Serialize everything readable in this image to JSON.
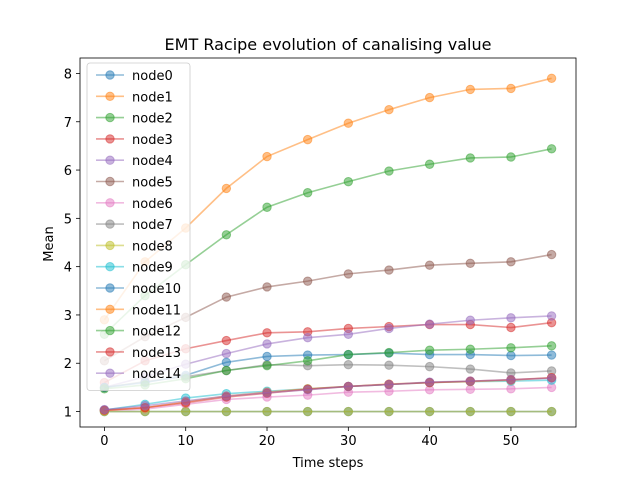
{
  "chart_data": {
    "type": "line",
    "title": "EMT Racipe evolution of canalising value",
    "xlabel": "Time steps",
    "ylabel": "Mean",
    "x": [
      0,
      5,
      10,
      15,
      20,
      25,
      30,
      35,
      40,
      45,
      50,
      55
    ],
    "xlim": [
      -3.0,
      58.0
    ],
    "ylim": [
      0.68,
      8.32
    ],
    "xticks": [
      0,
      10,
      20,
      30,
      40,
      50
    ],
    "yticks": [
      1,
      2,
      3,
      4,
      5,
      6,
      7,
      8
    ],
    "grid": false,
    "legend_position": "upper-left",
    "marker": "circle",
    "series": [
      {
        "name": "node0",
        "color": "#1f77b4",
        "values": [
          1.0,
          1.0,
          1.0,
          1.0,
          1.0,
          1.0,
          1.0,
          1.0,
          1.0,
          1.0,
          1.0,
          1.0
        ]
      },
      {
        "name": "node1",
        "color": "#ff7f0e",
        "values": [
          2.9,
          4.1,
          4.8,
          5.62,
          6.28,
          6.63,
          6.97,
          7.25,
          7.5,
          7.67,
          7.69,
          7.9
        ]
      },
      {
        "name": "node2",
        "color": "#2ca02c",
        "values": [
          2.6,
          3.4,
          4.04,
          4.66,
          5.23,
          5.53,
          5.76,
          5.98,
          6.12,
          6.25,
          6.27,
          6.44
        ]
      },
      {
        "name": "node3",
        "color": "#d62728",
        "values": [
          1.6,
          2.05,
          2.3,
          2.47,
          2.63,
          2.65,
          2.72,
          2.76,
          2.8,
          2.8,
          2.74,
          2.84
        ]
      },
      {
        "name": "node4",
        "color": "#9467bd",
        "values": [
          1.5,
          1.72,
          1.98,
          2.2,
          2.4,
          2.53,
          2.6,
          2.72,
          2.81,
          2.89,
          2.94,
          2.98
        ]
      },
      {
        "name": "node5",
        "color": "#8c564b",
        "values": [
          2.05,
          2.55,
          2.95,
          3.37,
          3.58,
          3.7,
          3.85,
          3.93,
          4.03,
          4.07,
          4.1,
          4.25
        ]
      },
      {
        "name": "node6",
        "color": "#e377c2",
        "values": [
          1.02,
          1.05,
          1.15,
          1.25,
          1.3,
          1.34,
          1.4,
          1.42,
          1.45,
          1.46,
          1.47,
          1.5
        ]
      },
      {
        "name": "node7",
        "color": "#7f7f7f",
        "values": [
          1.5,
          1.62,
          1.72,
          1.85,
          1.97,
          1.95,
          1.97,
          1.96,
          1.93,
          1.88,
          1.8,
          1.84
        ]
      },
      {
        "name": "node8",
        "color": "#bcbd22",
        "values": [
          1.0,
          1.0,
          1.0,
          1.0,
          1.0,
          1.0,
          1.0,
          1.0,
          1.0,
          1.0,
          1.0,
          1.0
        ]
      },
      {
        "name": "node9",
        "color": "#17becf",
        "values": [
          1.03,
          1.15,
          1.28,
          1.37,
          1.42,
          1.47,
          1.52,
          1.56,
          1.6,
          1.62,
          1.63,
          1.65
        ]
      },
      {
        "name": "node10",
        "color": "#1f77b4",
        "values": [
          1.5,
          1.6,
          1.75,
          2.02,
          2.14,
          2.17,
          2.18,
          2.21,
          2.18,
          2.18,
          2.16,
          2.17
        ]
      },
      {
        "name": "node11",
        "color": "#ff7f0e",
        "values": [
          1.02,
          1.08,
          1.2,
          1.32,
          1.4,
          1.47,
          1.52,
          1.57,
          1.6,
          1.62,
          1.65,
          1.7
        ]
      },
      {
        "name": "node12",
        "color": "#2ca02c",
        "values": [
          1.47,
          1.55,
          1.68,
          1.85,
          1.95,
          2.05,
          2.18,
          2.22,
          2.27,
          2.29,
          2.32,
          2.36
        ]
      },
      {
        "name": "node13",
        "color": "#d62728",
        "values": [
          1.03,
          1.08,
          1.18,
          1.3,
          1.38,
          1.46,
          1.52,
          1.56,
          1.6,
          1.63,
          1.66,
          1.7
        ]
      },
      {
        "name": "node14",
        "color": "#9467bd",
        "values": [
          1.04,
          1.12,
          1.22,
          1.32,
          1.39,
          1.45,
          1.52,
          1.56,
          1.61,
          1.63,
          1.66,
          1.69
        ]
      }
    ]
  }
}
